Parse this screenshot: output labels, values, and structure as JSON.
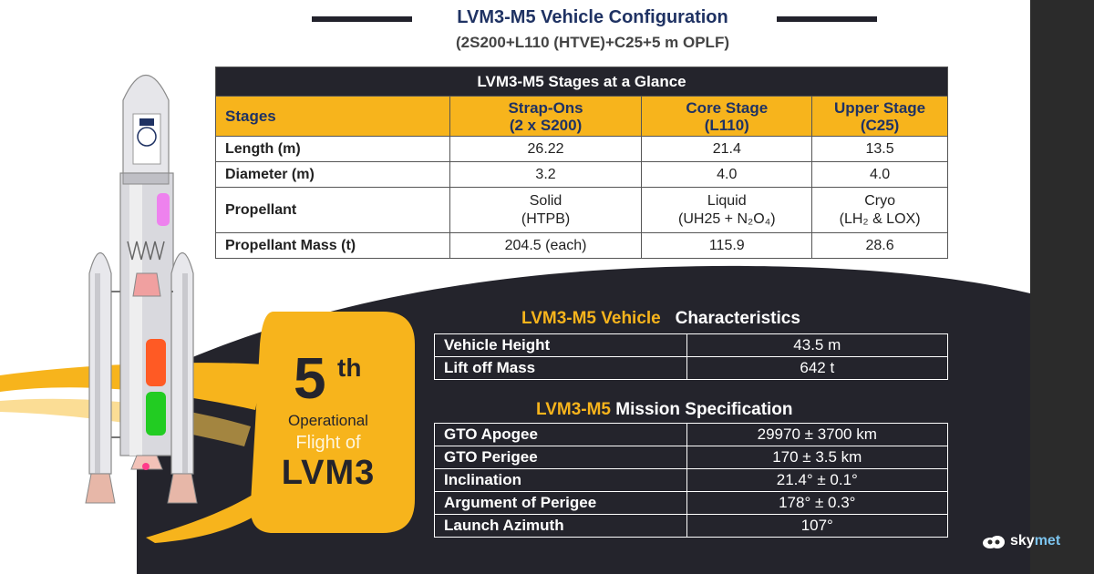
{
  "header": {
    "title": "LVM3-M5 Vehicle Configuration",
    "subtitle": "(2S200+L110 (HTVE)+C25+5 m OPLF)"
  },
  "stages_table": {
    "caption": "LVM3-M5 Stages at a Glance",
    "columns": [
      {
        "label": "Stages"
      },
      {
        "label": "Strap-Ons",
        "sub": "(2 x S200)"
      },
      {
        "label": "Core Stage",
        "sub": "(L110)"
      },
      {
        "label": "Upper Stage",
        "sub": "(C25)"
      }
    ],
    "rows": [
      {
        "label": "Length (m)",
        "values": [
          {
            "v": "26.22"
          },
          {
            "v": "21.4"
          },
          {
            "v": "13.5"
          }
        ]
      },
      {
        "label": "Diameter (m)",
        "values": [
          {
            "v": "3.2"
          },
          {
            "v": "4.0"
          },
          {
            "v": "4.0"
          }
        ]
      },
      {
        "label": "Propellant",
        "values": [
          {
            "v": "Solid",
            "sub": "(HTPB)"
          },
          {
            "v": "Liquid",
            "sub": "(UH25 + N₂O₄)"
          },
          {
            "v": "Cryo",
            "sub": "(LH₂ & LOX)"
          }
        ]
      },
      {
        "label": "Propellant Mass (t)",
        "values": [
          {
            "v": "204.5 (each)"
          },
          {
            "v": "115.9"
          },
          {
            "v": "28.6"
          }
        ]
      }
    ]
  },
  "characteristics": {
    "title_accent": "LVM3-M5 Vehicle",
    "title_rest": "Characteristics",
    "rows": [
      {
        "label": "Vehicle Height",
        "value": "43.5 m"
      },
      {
        "label": "Lift off Mass",
        "value": "642 t"
      }
    ]
  },
  "mission": {
    "title_accent": "LVM3-M5",
    "title_rest": "Mission Specification",
    "rows": [
      {
        "label": "GTO Apogee",
        "value": "29970 ± 3700 km"
      },
      {
        "label": "GTO Perigee",
        "value": "170 ± 3.5 km"
      },
      {
        "label": "Inclination",
        "value": "21.4° ± 0.1°"
      },
      {
        "label": "Argument of Perigee",
        "value": "178° ± 0.3°"
      },
      {
        "label": "Launch Azimuth",
        "value": "107°"
      }
    ]
  },
  "badge": {
    "number": "5",
    "suffix": "th",
    "line1": "Operational",
    "line2": "Flight of",
    "line3": "LVM3"
  },
  "watermark": {
    "brand_a": "sky",
    "brand_b": "met",
    "icon": "cloud-logo-icon"
  },
  "colors": {
    "accent": "#f7b41c",
    "navy": "#1f3263",
    "dark": "#24242c"
  }
}
